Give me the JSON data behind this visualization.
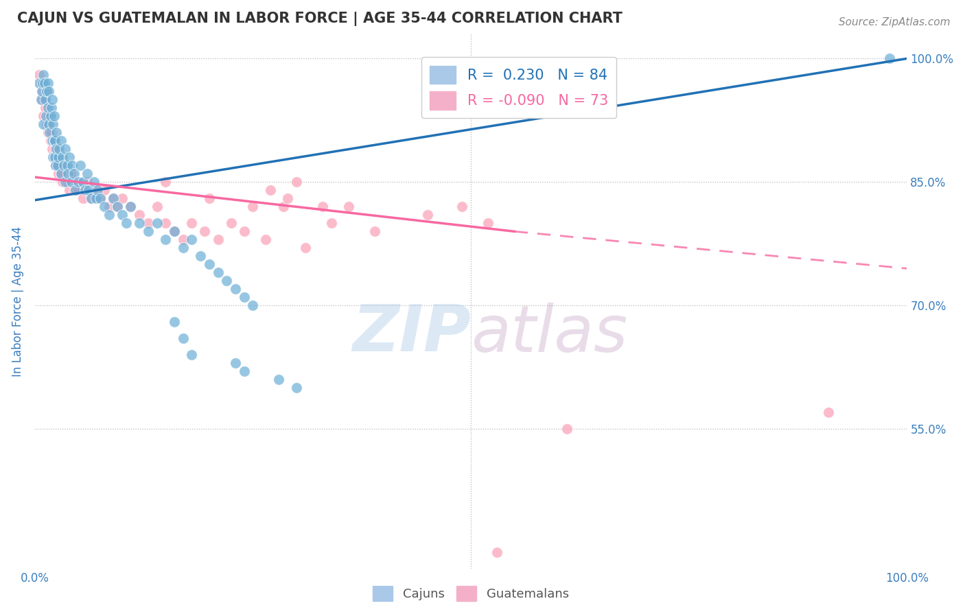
{
  "title": "CAJUN VS GUATEMALAN IN LABOR FORCE | AGE 35-44 CORRELATION CHART",
  "source_text": "Source: ZipAtlas.com",
  "ylabel": "In Labor Force | Age 35-44",
  "xlim": [
    0.0,
    1.0
  ],
  "ylim": [
    0.38,
    1.03
  ],
  "ytick_positions": [
    0.55,
    0.7,
    0.85,
    1.0
  ],
  "ytick_labels": [
    "55.0%",
    "70.0%",
    "85.0%",
    "100.0%"
  ],
  "legend_r_cajun": "0.230",
  "legend_n_cajun": "84",
  "legend_r_guatemalan": "-0.090",
  "legend_n_guatemalan": "73",
  "cajun_color": "#6baed6",
  "guatemalan_color": "#fa9fb5",
  "cajun_line_color": "#2171b5",
  "guatemalan_line_color": "#f768a1",
  "background_color": "#ffffff",
  "grid_color": "#b8b8b8",
  "title_color": "#333333",
  "axis_label_color": "#3a7fbf",
  "tick_label_color": "#3a7fbf",
  "cajun_x": [
    0.005,
    0.007,
    0.008,
    0.009,
    0.01,
    0.01,
    0.011,
    0.012,
    0.013,
    0.014,
    0.015,
    0.015,
    0.016,
    0.016,
    0.017,
    0.018,
    0.019,
    0.02,
    0.02,
    0.021,
    0.021,
    0.022,
    0.022,
    0.023,
    0.023,
    0.024,
    0.025,
    0.025,
    0.026,
    0.027,
    0.028,
    0.03,
    0.03,
    0.032,
    0.033,
    0.035,
    0.035,
    0.037,
    0.038,
    0.04,
    0.042,
    0.043,
    0.045,
    0.047,
    0.05,
    0.052,
    0.055,
    0.058,
    0.06,
    0.062,
    0.065,
    0.068,
    0.07,
    0.072,
    0.075,
    0.08,
    0.085,
    0.09,
    0.095,
    0.1,
    0.105,
    0.11,
    0.12,
    0.13,
    0.14,
    0.15,
    0.16,
    0.17,
    0.18,
    0.19,
    0.2,
    0.21,
    0.22,
    0.23,
    0.24,
    0.25,
    0.16,
    0.17,
    0.18,
    0.23,
    0.24,
    0.28,
    0.3,
    0.98
  ],
  "cajun_y": [
    0.97,
    0.95,
    0.96,
    0.97,
    0.98,
    0.92,
    0.97,
    0.95,
    0.93,
    0.96,
    0.97,
    0.94,
    0.96,
    0.92,
    0.91,
    0.93,
    0.94,
    0.95,
    0.9,
    0.92,
    0.88,
    0.9,
    0.93,
    0.88,
    0.9,
    0.87,
    0.89,
    0.91,
    0.87,
    0.88,
    0.89,
    0.9,
    0.86,
    0.88,
    0.87,
    0.89,
    0.85,
    0.87,
    0.86,
    0.88,
    0.85,
    0.87,
    0.86,
    0.84,
    0.85,
    0.87,
    0.85,
    0.84,
    0.86,
    0.84,
    0.83,
    0.85,
    0.83,
    0.84,
    0.83,
    0.82,
    0.81,
    0.83,
    0.82,
    0.81,
    0.8,
    0.82,
    0.8,
    0.79,
    0.8,
    0.78,
    0.79,
    0.77,
    0.78,
    0.76,
    0.75,
    0.74,
    0.73,
    0.72,
    0.71,
    0.7,
    0.68,
    0.66,
    0.64,
    0.63,
    0.62,
    0.61,
    0.6,
    1.0
  ],
  "guatemalan_x": [
    0.005,
    0.007,
    0.008,
    0.009,
    0.01,
    0.011,
    0.012,
    0.013,
    0.014,
    0.015,
    0.016,
    0.017,
    0.018,
    0.019,
    0.02,
    0.021,
    0.022,
    0.023,
    0.024,
    0.025,
    0.026,
    0.027,
    0.028,
    0.03,
    0.032,
    0.035,
    0.037,
    0.04,
    0.042,
    0.045,
    0.048,
    0.05,
    0.055,
    0.06,
    0.065,
    0.07,
    0.075,
    0.08,
    0.085,
    0.09,
    0.095,
    0.1,
    0.11,
    0.12,
    0.13,
    0.14,
    0.15,
    0.16,
    0.17,
    0.18,
    0.195,
    0.21,
    0.225,
    0.24,
    0.265,
    0.285,
    0.31,
    0.34,
    0.36,
    0.39,
    0.15,
    0.2,
    0.25,
    0.27,
    0.29,
    0.3,
    0.33,
    0.45,
    0.49,
    0.52,
    0.61,
    0.91,
    0.53
  ],
  "guatemalan_y": [
    0.98,
    0.97,
    0.95,
    0.96,
    0.93,
    0.95,
    0.94,
    0.96,
    0.92,
    0.91,
    0.93,
    0.92,
    0.9,
    0.91,
    0.89,
    0.9,
    0.88,
    0.89,
    0.87,
    0.88,
    0.87,
    0.86,
    0.88,
    0.86,
    0.85,
    0.87,
    0.85,
    0.84,
    0.86,
    0.84,
    0.85,
    0.84,
    0.83,
    0.85,
    0.83,
    0.84,
    0.83,
    0.84,
    0.82,
    0.83,
    0.82,
    0.83,
    0.82,
    0.81,
    0.8,
    0.82,
    0.8,
    0.79,
    0.78,
    0.8,
    0.79,
    0.78,
    0.8,
    0.79,
    0.78,
    0.82,
    0.77,
    0.8,
    0.82,
    0.79,
    0.85,
    0.83,
    0.82,
    0.84,
    0.83,
    0.85,
    0.82,
    0.81,
    0.82,
    0.8,
    0.55,
    0.57,
    0.4
  ],
  "blue_line_x": [
    0.0,
    1.0
  ],
  "blue_line_y_start": 0.828,
  "blue_line_y_end": 1.0,
  "pink_line_solid_x_start": 0.0,
  "pink_line_solid_x_end": 0.55,
  "pink_line_y_start": 0.856,
  "pink_line_solid_y_end": 0.79,
  "pink_line_dashed_x_start": 0.55,
  "pink_line_dashed_x_end": 1.0,
  "pink_line_dashed_y_start": 0.79,
  "pink_line_dashed_y_end": 0.745
}
